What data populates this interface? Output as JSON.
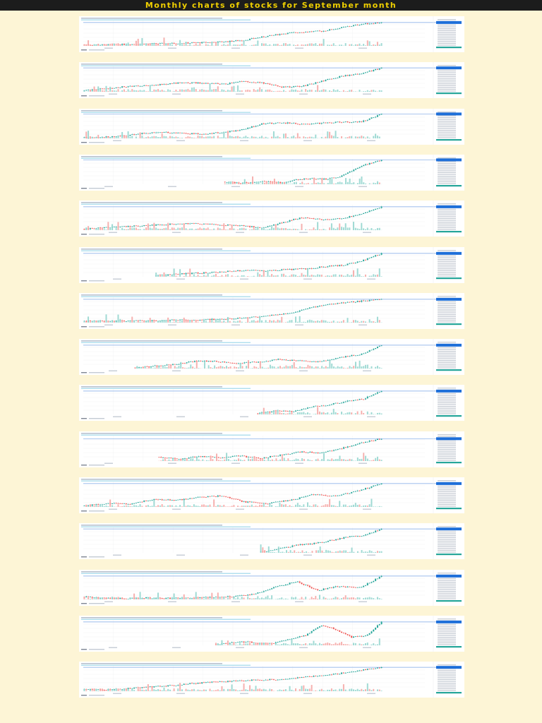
{
  "page": {
    "title": "Monthly charts of stocks for September month"
  },
  "colors": {
    "background": "#fdf5d6",
    "header": "#1c1c1c",
    "title": "#f0d000",
    "up": "#26a69a",
    "down": "#ef5350",
    "volume_up": "#8fd3cc",
    "volume_down": "#f5a3a1",
    "price_line": "#7aa6e6",
    "last_price_badge": "#1e6fd9",
    "axis_text": "#9aa4b2"
  },
  "chart_data": [
    {
      "type": "candlestick",
      "trend": [
        0.05,
        0.04,
        0.06,
        0.08,
        0.09,
        0.11,
        0.13,
        0.16,
        0.22,
        0.35,
        0.48,
        0.55,
        0.58,
        0.72,
        0.86,
        0.92
      ]
    },
    {
      "type": "candlestick",
      "trend": [
        0.05,
        0.12,
        0.2,
        0.24,
        0.3,
        0.36,
        0.34,
        0.3,
        0.4,
        0.35,
        0.18,
        0.22,
        0.42,
        0.62,
        0.72,
        0.94
      ]
    },
    {
      "type": "candlestick",
      "trend": [
        0.03,
        0.05,
        0.1,
        0.2,
        0.24,
        0.2,
        0.18,
        0.24,
        0.34,
        0.58,
        0.62,
        0.56,
        0.6,
        0.64,
        0.66,
        0.96
      ]
    },
    {
      "type": "candlestick",
      "trend": [
        0.1,
        0.04,
        0.08,
        0.12,
        0.06,
        0.18,
        0.22,
        0.2,
        0.28,
        0.55,
        0.8,
        0.96
      ],
      "start": 0.47
    },
    {
      "type": "candlestick",
      "trend": [
        0.05,
        0.1,
        0.14,
        0.18,
        0.22,
        0.26,
        0.24,
        0.2,
        0.18,
        0.08,
        0.3,
        0.5,
        0.42,
        0.46,
        0.66,
        0.92
      ]
    },
    {
      "type": "candlestick",
      "trend": [
        0.04,
        0.1,
        0.14,
        0.16,
        0.22,
        0.26,
        0.24,
        0.28,
        0.32,
        0.4,
        0.46,
        0.64,
        0.92
      ],
      "start": 0.24
    },
    {
      "type": "candlestick",
      "trend": [
        0.05,
        0.06,
        0.07,
        0.08,
        0.1,
        0.11,
        0.14,
        0.18,
        0.26,
        0.38,
        0.6,
        0.76,
        0.84,
        0.92
      ]
    },
    {
      "type": "candlestick",
      "trend": [
        0.04,
        0.1,
        0.18,
        0.3,
        0.28,
        0.22,
        0.26,
        0.36,
        0.3,
        0.26,
        0.44,
        0.56,
        0.92
      ],
      "start": 0.17
    },
    {
      "type": "candlestick",
      "trend": [
        0.04,
        0.14,
        0.12,
        0.3,
        0.38,
        0.52,
        0.62,
        0.92
      ],
      "start": 0.58
    },
    {
      "type": "candlestick",
      "trend": [
        0.16,
        0.08,
        0.18,
        0.14,
        0.2,
        0.1,
        0.24,
        0.36,
        0.32,
        0.5,
        0.72,
        0.88
      ],
      "start": 0.25
    },
    {
      "type": "candlestick",
      "trend": [
        0.04,
        0.14,
        0.12,
        0.3,
        0.26,
        0.38,
        0.44,
        0.2,
        0.14,
        0.26,
        0.48,
        0.44,
        0.64,
        0.92
      ]
    },
    {
      "type": "candlestick",
      "trend": [
        0.04,
        0.14,
        0.3,
        0.36,
        0.48,
        0.62,
        0.7,
        0.94
      ],
      "start": 0.59
    },
    {
      "type": "candlestick",
      "trend": [
        0.1,
        0.05,
        0.04,
        0.06,
        0.05,
        0.06,
        0.08,
        0.12,
        0.2,
        0.5,
        0.7,
        0.36,
        0.52,
        0.46,
        0.92
      ]
    },
    {
      "type": "candlestick",
      "trend": [
        0.04,
        0.1,
        0.14,
        0.08,
        0.1,
        0.26,
        0.4,
        0.8,
        0.62,
        0.32,
        0.38,
        0.92
      ],
      "start": 0.44
    },
    {
      "type": "candlestick",
      "trend": [
        0.08,
        0.06,
        0.1,
        0.16,
        0.22,
        0.3,
        0.36,
        0.4,
        0.44,
        0.46,
        0.52,
        0.6,
        0.7,
        0.82,
        0.94
      ]
    }
  ]
}
